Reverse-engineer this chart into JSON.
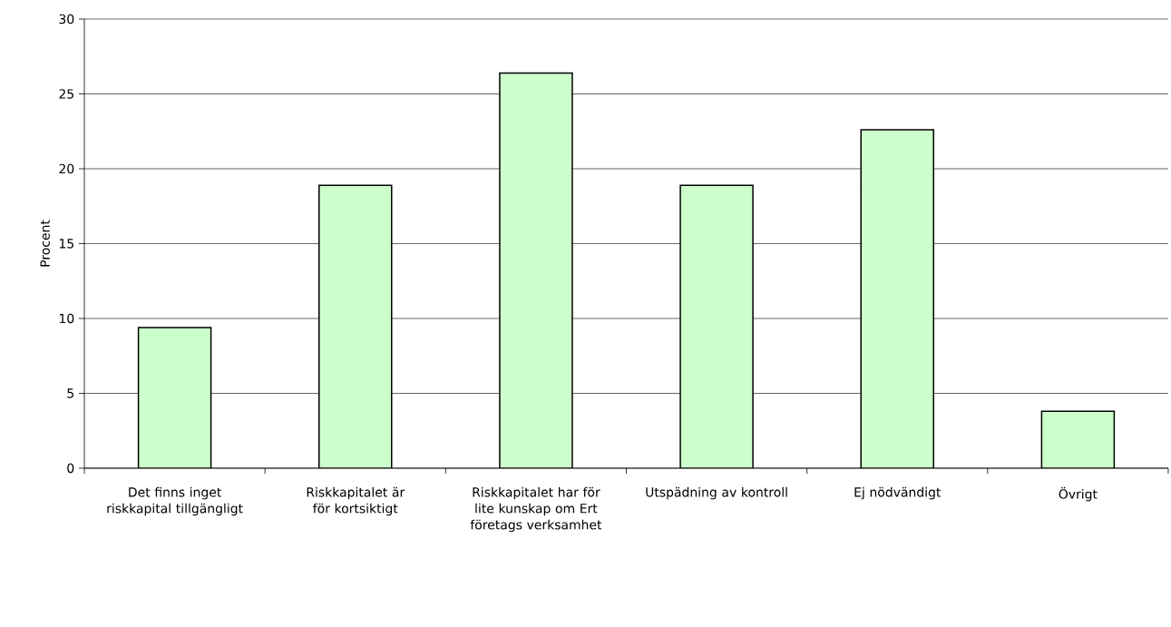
{
  "chart_data": {
    "type": "bar",
    "ylabel": "Procent",
    "categories": [
      "Det finns inget riskkapital tillgängligt",
      "Riskkapitalet är för kortsiktigt",
      "Riskkapitalet har för lite kunskap om Ert företags verksamhet",
      "Utspädning av kontroll",
      "Ej nödvändigt",
      "Övrigt"
    ],
    "values": [
      9.4,
      18.9,
      26.4,
      18.9,
      22.6,
      3.8
    ],
    "color": "#ccffcc",
    "ylim": [
      0,
      30
    ],
    "yticks": [
      0,
      5,
      10,
      15,
      20,
      25,
      30
    ],
    "grid": "y"
  }
}
